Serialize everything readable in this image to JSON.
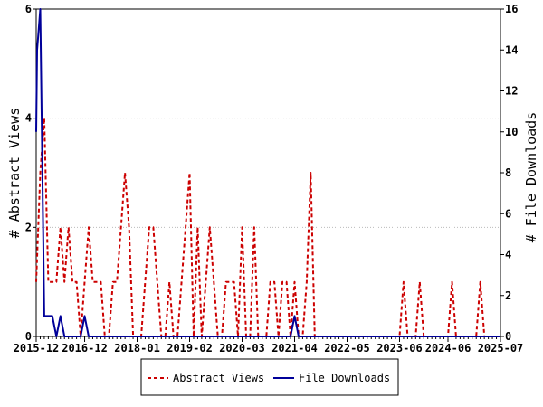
{
  "chart_data": {
    "type": "line",
    "x_tick_labels": [
      "2015-12",
      "2016-12",
      "2018-01",
      "2019-02",
      "2020-03",
      "2021-04",
      "2022-05",
      "2023-06",
      "2024-06",
      "2025-07"
    ],
    "x_range": [
      "2015-12",
      "2025-07"
    ],
    "ylabel_left": "# Abstract Views",
    "ylabel_right": "# File Downloads",
    "ylim_left": [
      0,
      6
    ],
    "ylim_right": [
      0,
      16
    ],
    "left_ticks": [
      0,
      2,
      4,
      6
    ],
    "right_ticks": [
      0,
      2,
      4,
      6,
      8,
      10,
      12,
      14,
      16
    ],
    "legend_position": "bottom-center",
    "series": [
      {
        "name": "Abstract Views",
        "axis": "left",
        "color": "#cc0000",
        "style": "dashed",
        "points": [
          [
            "2015-12",
            1
          ],
          [
            "2016-01",
            3
          ],
          [
            "2016-02",
            4
          ],
          [
            "2016-03",
            1
          ],
          [
            "2016-04",
            1
          ],
          [
            "2016-05",
            1
          ],
          [
            "2016-06",
            2
          ],
          [
            "2016-07",
            1
          ],
          [
            "2016-08",
            2
          ],
          [
            "2016-09",
            1
          ],
          [
            "2016-10",
            1
          ],
          [
            "2016-11",
            0
          ],
          [
            "2016-12",
            1
          ],
          [
            "2017-01",
            2
          ],
          [
            "2017-02",
            1
          ],
          [
            "2017-03",
            1
          ],
          [
            "2017-04",
            1
          ],
          [
            "2017-05",
            0
          ],
          [
            "2017-06",
            0
          ],
          [
            "2017-07",
            1
          ],
          [
            "2017-08",
            1
          ],
          [
            "2017-09",
            2
          ],
          [
            "2017-10",
            3
          ],
          [
            "2017-11",
            2
          ],
          [
            "2017-12",
            0
          ],
          [
            "2018-01",
            0
          ],
          [
            "2018-02",
            0
          ],
          [
            "2018-03",
            1
          ],
          [
            "2018-04",
            2
          ],
          [
            "2018-05",
            2
          ],
          [
            "2018-06",
            1
          ],
          [
            "2018-07",
            0
          ],
          [
            "2018-08",
            0
          ],
          [
            "2018-09",
            1
          ],
          [
            "2018-10",
            0
          ],
          [
            "2018-11",
            0
          ],
          [
            "2018-12",
            1
          ],
          [
            "2019-01",
            2
          ],
          [
            "2019-02",
            3
          ],
          [
            "2019-03",
            0
          ],
          [
            "2019-04",
            2
          ],
          [
            "2019-05",
            0
          ],
          [
            "2019-06",
            1
          ],
          [
            "2019-07",
            2
          ],
          [
            "2019-08",
            1
          ],
          [
            "2019-09",
            0
          ],
          [
            "2019-10",
            0
          ],
          [
            "2019-11",
            1
          ],
          [
            "2019-12",
            1
          ],
          [
            "2020-01",
            1
          ],
          [
            "2020-02",
            0
          ],
          [
            "2020-03",
            2
          ],
          [
            "2020-04",
            0
          ],
          [
            "2020-05",
            0
          ],
          [
            "2020-06",
            2
          ],
          [
            "2020-07",
            0
          ],
          [
            "2020-08",
            0
          ],
          [
            "2020-09",
            0
          ],
          [
            "2020-10",
            1
          ],
          [
            "2020-11",
            1
          ],
          [
            "2020-12",
            0
          ],
          [
            "2021-01",
            1
          ],
          [
            "2021-02",
            1
          ],
          [
            "2021-03",
            0
          ],
          [
            "2021-04",
            1
          ],
          [
            "2021-05",
            0
          ],
          [
            "2021-06",
            0
          ],
          [
            "2021-07",
            1
          ],
          [
            "2021-08",
            3
          ],
          [
            "2021-09",
            0
          ],
          [
            "2022-05",
            0
          ],
          [
            "2023-06",
            0
          ],
          [
            "2023-07",
            1
          ],
          [
            "2023-08",
            0
          ],
          [
            "2023-09",
            0
          ],
          [
            "2023-10",
            0
          ],
          [
            "2023-11",
            1
          ],
          [
            "2023-12",
            0
          ],
          [
            "2024-06",
            0
          ],
          [
            "2024-07",
            1
          ],
          [
            "2024-08",
            0
          ],
          [
            "2025-01",
            0
          ],
          [
            "2025-02",
            1
          ],
          [
            "2025-03",
            0
          ],
          [
            "2025-07",
            0
          ]
        ]
      },
      {
        "name": "File Downloads",
        "axis": "right",
        "color": "#000099",
        "style": "solid",
        "points": [
          [
            "2015-12",
            10
          ],
          [
            "2015-12",
            14
          ],
          [
            "2016-01",
            16
          ],
          [
            "2016-02",
            1
          ],
          [
            "2016-03",
            1
          ],
          [
            "2016-04",
            1
          ],
          [
            "2016-05",
            0
          ],
          [
            "2016-06",
            1
          ],
          [
            "2016-07",
            0
          ],
          [
            "2016-08",
            0
          ],
          [
            "2016-09",
            0
          ],
          [
            "2016-10",
            0
          ],
          [
            "2016-11",
            0
          ],
          [
            "2016-12",
            1
          ],
          [
            "2017-01",
            0
          ],
          [
            "2017-02",
            0
          ],
          [
            "2018-01",
            0
          ],
          [
            "2019-02",
            0
          ],
          [
            "2020-03",
            0
          ],
          [
            "2021-03",
            0
          ],
          [
            "2021-04",
            1
          ],
          [
            "2021-05",
            0
          ],
          [
            "2022-05",
            0
          ],
          [
            "2023-06",
            0
          ],
          [
            "2024-06",
            0
          ],
          [
            "2025-07",
            0
          ]
        ]
      }
    ]
  }
}
